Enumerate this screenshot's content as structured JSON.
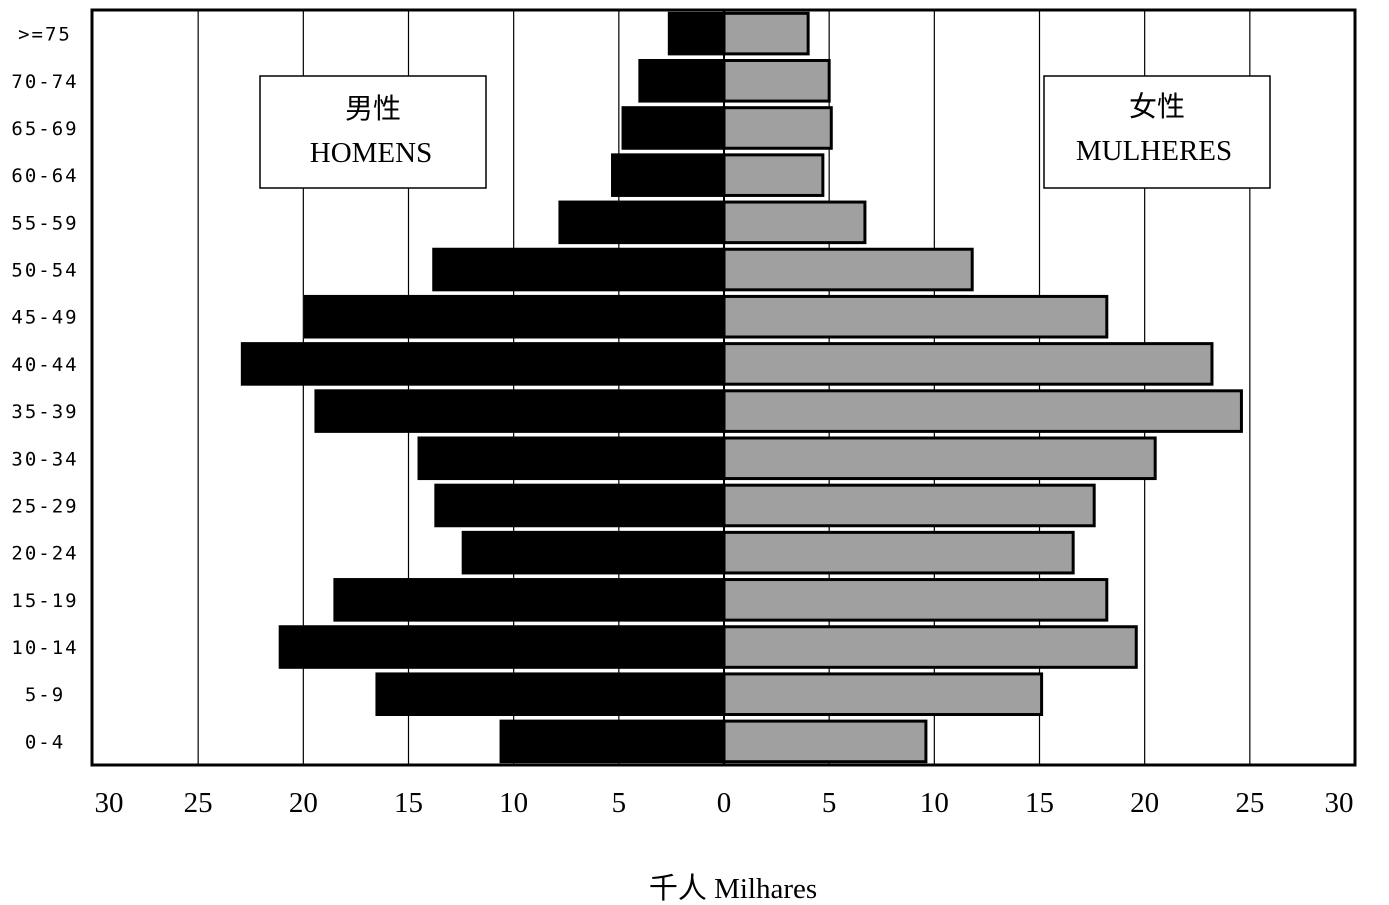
{
  "chart_data": {
    "type": "bar",
    "orientation": "horizontal",
    "subtype": "population-pyramid",
    "categories": [
      ">=75",
      "70-74",
      "65-69",
      "60-64",
      "55-59",
      "50-54",
      "45-49",
      "40-44",
      "35-39",
      "30-34",
      "25-29",
      "20-24",
      "15-19",
      "10-14",
      "5-9",
      "0-4"
    ],
    "series": [
      {
        "name": "男性 HOMENS",
        "label_cn": "男性",
        "label_pt": "HOMENS",
        "color": "#000000",
        "side": "left",
        "values": [
          2.6,
          4.0,
          4.8,
          5.3,
          7.8,
          13.8,
          19.9,
          22.9,
          19.4,
          14.5,
          13.7,
          12.4,
          18.5,
          21.1,
          16.5,
          10.6
        ]
      },
      {
        "name": "女性 MULHERES",
        "label_cn": "女性",
        "label_pt": "MULHERES",
        "color": "#a0a0a0",
        "side": "right",
        "values": [
          4.0,
          5.0,
          5.1,
          4.7,
          6.7,
          11.8,
          18.2,
          23.2,
          24.6,
          20.5,
          17.6,
          16.6,
          18.2,
          19.6,
          15.1,
          9.6
        ]
      }
    ],
    "xticks": [
      "30",
      "25",
      "20",
      "15",
      "10",
      "5",
      "0",
      "5",
      "10",
      "15",
      "20",
      "25",
      "30"
    ],
    "xlim": [
      -30,
      30
    ],
    "xlabel": "千人  Milhares",
    "grid": "vertical",
    "legend": "boxed labels in upper-left and upper-right"
  }
}
